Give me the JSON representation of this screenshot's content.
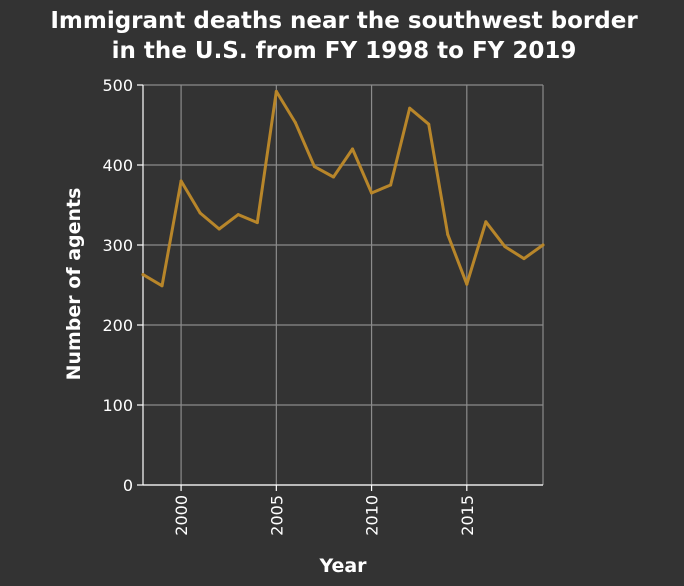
{
  "chart_data": {
    "type": "line",
    "title_lines": [
      "Immigrant deaths near the southwest border",
      "in the U.S. from FY 1998 to FY 2019"
    ],
    "xlabel": "Year",
    "ylabel": "Number of agents",
    "xlim": [
      1998,
      2019
    ],
    "ylim": [
      0,
      500
    ],
    "xticks": [
      2000,
      2005,
      2010,
      2015
    ],
    "yticks": [
      0,
      100,
      200,
      300,
      400,
      500
    ],
    "grid": true,
    "line_color": "#b8862a",
    "x": [
      1998,
      1999,
      2000,
      2001,
      2002,
      2003,
      2004,
      2005,
      2006,
      2007,
      2008,
      2009,
      2010,
      2011,
      2012,
      2013,
      2014,
      2015,
      2016,
      2017,
      2018,
      2019
    ],
    "values": [
      263,
      249,
      380,
      340,
      320,
      338,
      328,
      492,
      453,
      398,
      385,
      420,
      365,
      375,
      471,
      451,
      313,
      251,
      329,
      298,
      283,
      300
    ]
  }
}
